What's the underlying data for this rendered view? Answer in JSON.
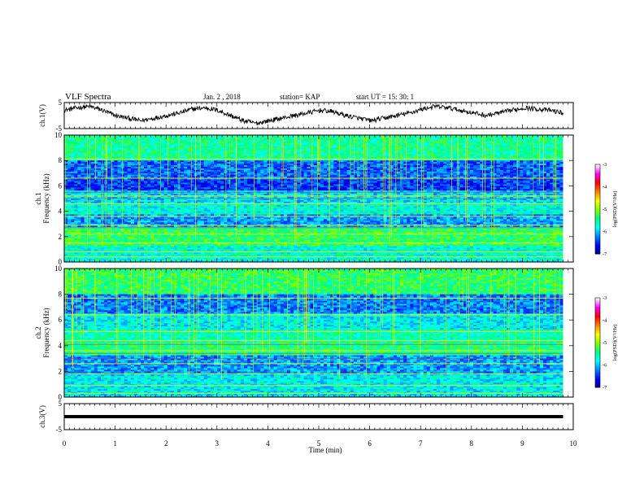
{
  "header": {
    "title": "VLF Spectra",
    "date": "Jan. 2 , 2018",
    "station": "station= KAP",
    "start": "start UT =  15: 30: 1"
  },
  "chart_data": [
    {
      "type": "line",
      "name": "ch1-waveform",
      "ylabel": "ch.1(V)",
      "ylim": [
        -5,
        5
      ],
      "yticks": [
        "5",
        "-5"
      ],
      "xlim": [
        0,
        10
      ],
      "x_extent": [
        0,
        9.8
      ],
      "description_level": [
        2,
        3,
        3.5,
        2,
        0,
        -1,
        -2,
        -1,
        0,
        1,
        2.5,
        3,
        2,
        0,
        -2,
        -3,
        -2,
        -1,
        0,
        1,
        2,
        1.5,
        0,
        -1,
        -2,
        -1,
        0,
        1,
        2.5,
        3.5,
        3,
        2,
        1,
        0,
        1,
        2,
        3,
        2.5,
        2,
        1
      ]
    },
    {
      "type": "heatmap",
      "name": "ch1-spectrogram",
      "ylabel": "ch.1\nFrequency (kHz)",
      "ylim": [
        0,
        10
      ],
      "yticks": [
        "0",
        "2",
        "4",
        "6",
        "8",
        "10"
      ],
      "xlim": [
        0,
        10
      ],
      "x_extent": [
        0,
        9.8
      ],
      "colorbar": {
        "label": "log(PSD)(V²/Hz)",
        "range": [
          -7,
          -3
        ],
        "ticks": [
          "-3",
          "-4",
          "-5",
          "-6",
          "-7"
        ]
      }
    },
    {
      "type": "heatmap",
      "name": "ch2-spectrogram",
      "ylabel": "ch.2\nFrequency (kHz)",
      "ylim": [
        0,
        10
      ],
      "yticks": [
        "0",
        "2",
        "4",
        "6",
        "8",
        "10"
      ],
      "xlim": [
        0,
        10
      ],
      "x_extent": [
        0,
        9.8
      ],
      "colorbar": {
        "label": "log(PSD)(V²/Hz)",
        "range": [
          -7,
          -3
        ],
        "ticks": [
          "-3",
          "-4",
          "-5",
          "-6",
          "-7"
        ]
      }
    },
    {
      "type": "line",
      "name": "ch3-waveform",
      "ylabel": "ch.3(V)",
      "ylim": [
        -5,
        5
      ],
      "yticks": [
        "5",
        "-5"
      ],
      "xlim": [
        0,
        10
      ],
      "x_extent": [
        0,
        9.8
      ],
      "constant_value": 0
    }
  ],
  "xaxis": {
    "label": "Time (min)",
    "ticks": [
      "0",
      "1",
      "2",
      "3",
      "4",
      "5",
      "6",
      "7",
      "8",
      "9",
      "10"
    ]
  },
  "colors": {
    "line": "#000000",
    "colormap": [
      "#000080",
      "#0000ff",
      "#0080ff",
      "#00ffff",
      "#00ff80",
      "#80ff00",
      "#ffff00",
      "#ff8000",
      "#ff0000",
      "#ff00ff",
      "#ffffff"
    ]
  }
}
